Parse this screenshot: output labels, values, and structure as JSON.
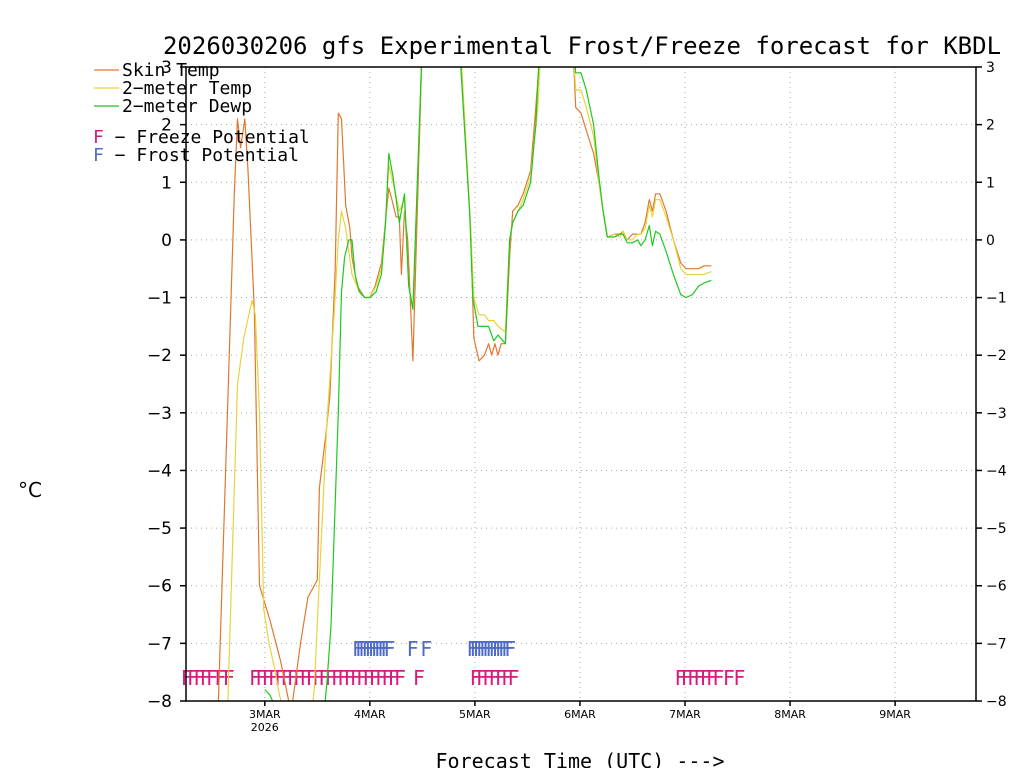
{
  "chart_data": {
    "type": "line",
    "title": "2026030206 gfs Experimental Frost/Freeze forecast for KBDL",
    "xlabel": "Forecast Time (UTC) --->",
    "ylabel": "°C",
    "ylim": [
      -8,
      3
    ],
    "yticks": [
      3,
      2,
      1,
      0,
      -1,
      -2,
      -3,
      -4,
      -5,
      -6,
      -7,
      -8
    ],
    "yticks_right": [
      3,
      2,
      1,
      0,
      -1,
      -2,
      -3,
      -4,
      -5,
      -6,
      -7,
      -8
    ],
    "x_unit": "days since 2026-03-02 00Z",
    "xlim": [
      0.25,
      7.77
    ],
    "xticks": [
      {
        "x": 1,
        "label": "3MAR",
        "sub": "2026"
      },
      {
        "x": 2,
        "label": "4MAR",
        "sub": ""
      },
      {
        "x": 3,
        "label": "5MAR",
        "sub": ""
      },
      {
        "x": 4,
        "label": "6MAR",
        "sub": ""
      },
      {
        "x": 5,
        "label": "7MAR",
        "sub": ""
      },
      {
        "x": 6,
        "label": "8MAR",
        "sub": ""
      },
      {
        "x": 7,
        "label": "9MAR",
        "sub": ""
      }
    ],
    "grid": true,
    "legend_position": "top-left",
    "series": [
      {
        "name": "Skin Temp",
        "color": "#e07830",
        "points": [
          [
            0.55,
            -8.5
          ],
          [
            0.71,
            0.8
          ],
          [
            0.74,
            2.1
          ],
          [
            0.77,
            1.6
          ],
          [
            0.81,
            2.1
          ],
          [
            0.84,
            1.2
          ],
          [
            0.9,
            -1.2
          ],
          [
            0.95,
            -6.0
          ],
          [
            1.05,
            -6.6
          ],
          [
            1.15,
            -7.3
          ],
          [
            1.25,
            -8.2
          ],
          [
            1.34,
            -7.0
          ],
          [
            1.41,
            -6.2
          ],
          [
            1.5,
            -5.9
          ],
          [
            1.52,
            -4.3
          ],
          [
            1.58,
            -3.4
          ],
          [
            1.62,
            -2.7
          ],
          [
            1.67,
            -0.5
          ],
          [
            1.7,
            2.2
          ],
          [
            1.73,
            2.1
          ],
          [
            1.77,
            0.6
          ],
          [
            1.81,
            0.2
          ],
          [
            1.83,
            -0.3
          ],
          [
            1.88,
            -0.8
          ],
          [
            1.95,
            -1.0
          ],
          [
            2.0,
            -1.0
          ],
          [
            2.05,
            -0.8
          ],
          [
            2.11,
            -0.4
          ],
          [
            2.18,
            0.9
          ],
          [
            2.21,
            0.7
          ],
          [
            2.25,
            0.4
          ],
          [
            2.28,
            0.4
          ],
          [
            2.3,
            -0.6
          ],
          [
            2.33,
            0.5
          ],
          [
            2.36,
            0.0
          ],
          [
            2.41,
            -2.1
          ],
          [
            2.5,
            3.5
          ],
          [
            2.85,
            3.5
          ],
          [
            2.96,
            0.2
          ],
          [
            2.99,
            -1.7
          ],
          [
            3.04,
            -2.1
          ],
          [
            3.09,
            -2.0
          ],
          [
            3.13,
            -1.8
          ],
          [
            3.16,
            -2.0
          ],
          [
            3.19,
            -1.8
          ],
          [
            3.22,
            -2.0
          ],
          [
            3.25,
            -1.8
          ],
          [
            3.29,
            -1.8
          ],
          [
            3.33,
            -0.3
          ],
          [
            3.36,
            0.5
          ],
          [
            3.41,
            0.6
          ],
          [
            3.46,
            0.8
          ],
          [
            3.53,
            1.2
          ],
          [
            3.58,
            2.3
          ],
          [
            3.63,
            3.5
          ],
          [
            3.93,
            3.5
          ],
          [
            3.96,
            2.3
          ],
          [
            4.01,
            2.2
          ],
          [
            4.06,
            1.9
          ],
          [
            4.13,
            1.5
          ],
          [
            4.18,
            1.0
          ],
          [
            4.22,
            0.5
          ],
          [
            4.26,
            0.05
          ],
          [
            4.33,
            0.1
          ],
          [
            4.38,
            0.1
          ],
          [
            4.41,
            0.15
          ],
          [
            4.45,
            0.0
          ],
          [
            4.5,
            0.1
          ],
          [
            4.55,
            0.1
          ],
          [
            4.58,
            0.1
          ],
          [
            4.62,
            0.3
          ],
          [
            4.66,
            0.7
          ],
          [
            4.69,
            0.5
          ],
          [
            4.72,
            0.8
          ],
          [
            4.76,
            0.8
          ],
          [
            4.82,
            0.5
          ],
          [
            4.89,
            0.0
          ],
          [
            4.96,
            -0.4
          ],
          [
            5.01,
            -0.5
          ],
          [
            5.07,
            -0.5
          ],
          [
            5.13,
            -0.5
          ],
          [
            5.18,
            -0.45
          ],
          [
            5.25,
            -0.45
          ]
        ]
      },
      {
        "name": "2-meter Temp",
        "color": "#e6d43c",
        "points": [
          [
            0.64,
            -8.5
          ],
          [
            0.74,
            -2.5
          ],
          [
            0.8,
            -1.7
          ],
          [
            0.86,
            -1.2
          ],
          [
            0.88,
            -1.05
          ],
          [
            0.91,
            -1.3
          ],
          [
            0.95,
            -3.0
          ],
          [
            0.99,
            -6.4
          ],
          [
            1.04,
            -7.0
          ],
          [
            1.09,
            -7.4
          ],
          [
            1.14,
            -7.9
          ],
          [
            1.25,
            -8.7
          ],
          [
            1.42,
            -8.7
          ],
          [
            1.47,
            -7.8
          ],
          [
            1.52,
            -5.9
          ],
          [
            1.59,
            -3.2
          ],
          [
            1.63,
            -2.1
          ],
          [
            1.66,
            -1.3
          ],
          [
            1.7,
            0.0
          ],
          [
            1.73,
            0.5
          ],
          [
            1.77,
            0.2
          ],
          [
            1.8,
            -0.2
          ],
          [
            1.83,
            -0.6
          ],
          [
            1.9,
            -0.9
          ],
          [
            1.95,
            -1.0
          ],
          [
            2.0,
            -1.0
          ],
          [
            2.06,
            -0.8
          ],
          [
            2.11,
            -0.5
          ],
          [
            2.15,
            0.3
          ],
          [
            2.18,
            1.3
          ],
          [
            2.22,
            1.0
          ],
          [
            2.28,
            0.5
          ],
          [
            2.33,
            0.7
          ],
          [
            2.37,
            -0.8
          ],
          [
            2.41,
            -1.2
          ],
          [
            2.5,
            3.5
          ],
          [
            2.86,
            3.5
          ],
          [
            2.96,
            0.2
          ],
          [
            2.99,
            -1.0
          ],
          [
            3.04,
            -1.3
          ],
          [
            3.09,
            -1.3
          ],
          [
            3.13,
            -1.4
          ],
          [
            3.18,
            -1.4
          ],
          [
            3.22,
            -1.5
          ],
          [
            3.29,
            -1.6
          ],
          [
            3.33,
            0.0
          ],
          [
            3.36,
            0.3
          ],
          [
            3.41,
            0.5
          ],
          [
            3.46,
            0.7
          ],
          [
            3.53,
            1.1
          ],
          [
            3.6,
            2.3
          ],
          [
            3.63,
            3.5
          ],
          [
            3.93,
            3.5
          ],
          [
            3.96,
            2.6
          ],
          [
            4.01,
            2.6
          ],
          [
            4.06,
            2.3
          ],
          [
            4.13,
            1.8
          ],
          [
            4.18,
            1.0
          ],
          [
            4.22,
            0.5
          ],
          [
            4.26,
            0.05
          ],
          [
            4.33,
            0.1
          ],
          [
            4.38,
            0.05
          ],
          [
            4.41,
            0.15
          ],
          [
            4.45,
            0.0
          ],
          [
            4.5,
            0.0
          ],
          [
            4.55,
            0.1
          ],
          [
            4.58,
            0.1
          ],
          [
            4.62,
            0.2
          ],
          [
            4.66,
            0.6
          ],
          [
            4.69,
            0.4
          ],
          [
            4.72,
            0.7
          ],
          [
            4.76,
            0.7
          ],
          [
            4.82,
            0.4
          ],
          [
            4.89,
            0.0
          ],
          [
            4.96,
            -0.5
          ],
          [
            5.01,
            -0.6
          ],
          [
            5.07,
            -0.6
          ],
          [
            5.13,
            -0.6
          ],
          [
            5.18,
            -0.6
          ],
          [
            5.25,
            -0.55
          ]
        ]
      },
      {
        "name": "2-meter Dewp",
        "color": "#1ec81e",
        "points": [
          [
            1.0,
            -7.8
          ],
          [
            1.05,
            -7.9
          ],
          [
            1.15,
            -8.3
          ],
          [
            1.35,
            -8.6
          ],
          [
            1.55,
            -8.5
          ],
          [
            1.59,
            -7.7
          ],
          [
            1.63,
            -6.7
          ],
          [
            1.7,
            -3.0
          ],
          [
            1.73,
            -0.9
          ],
          [
            1.76,
            -0.3
          ],
          [
            1.8,
            0.0
          ],
          [
            1.83,
            0.0
          ],
          [
            1.86,
            -0.6
          ],
          [
            1.9,
            -0.9
          ],
          [
            1.95,
            -1.0
          ],
          [
            2.0,
            -1.0
          ],
          [
            2.06,
            -0.9
          ],
          [
            2.11,
            -0.6
          ],
          [
            2.15,
            0.3
          ],
          [
            2.18,
            1.5
          ],
          [
            2.22,
            1.1
          ],
          [
            2.28,
            0.3
          ],
          [
            2.33,
            0.8
          ],
          [
            2.37,
            -0.8
          ],
          [
            2.41,
            -1.2
          ],
          [
            2.5,
            3.5
          ],
          [
            2.85,
            3.5
          ],
          [
            2.95,
            0.5
          ],
          [
            2.98,
            -1.0
          ],
          [
            3.03,
            -1.5
          ],
          [
            3.09,
            -1.5
          ],
          [
            3.13,
            -1.5
          ],
          [
            3.18,
            -1.75
          ],
          [
            3.22,
            -1.65
          ],
          [
            3.29,
            -1.8
          ],
          [
            3.33,
            0.0
          ],
          [
            3.36,
            0.3
          ],
          [
            3.41,
            0.5
          ],
          [
            3.46,
            0.6
          ],
          [
            3.53,
            1.0
          ],
          [
            3.58,
            2.0
          ],
          [
            3.62,
            3.5
          ],
          [
            3.93,
            3.5
          ],
          [
            3.96,
            2.9
          ],
          [
            4.01,
            2.9
          ],
          [
            4.06,
            2.6
          ],
          [
            4.13,
            2.0
          ],
          [
            4.18,
            1.1
          ],
          [
            4.22,
            0.5
          ],
          [
            4.26,
            0.05
          ],
          [
            4.33,
            0.05
          ],
          [
            4.38,
            0.1
          ],
          [
            4.41,
            0.1
          ],
          [
            4.45,
            -0.05
          ],
          [
            4.5,
            -0.05
          ],
          [
            4.55,
            0.0
          ],
          [
            4.58,
            -0.1
          ],
          [
            4.62,
            0.0
          ],
          [
            4.66,
            0.25
          ],
          [
            4.69,
            -0.1
          ],
          [
            4.72,
            0.15
          ],
          [
            4.76,
            0.1
          ],
          [
            4.82,
            -0.2
          ],
          [
            4.89,
            -0.6
          ],
          [
            4.96,
            -0.95
          ],
          [
            5.01,
            -1.0
          ],
          [
            5.07,
            -0.95
          ],
          [
            5.13,
            -0.8
          ],
          [
            5.18,
            -0.75
          ],
          [
            5.25,
            -0.7
          ]
        ]
      }
    ],
    "legend": [
      {
        "name": "Skin Temp",
        "color": "#e07830"
      },
      {
        "name": "2-meter Temp",
        "color": "#e6d43c"
      },
      {
        "name": "2-meter Dewp",
        "color": "#1ec81e"
      }
    ],
    "potential_legend": [
      {
        "letter": "F",
        "text": " - Freeze Potential",
        "color": "#d81b7c"
      },
      {
        "letter": "F",
        "text": " - Frost Potential",
        "color": "#4f6ac8"
      }
    ],
    "frost_potential": {
      "y": -7.1,
      "color": "#4f6ac8",
      "times": [
        1.83,
        1.86,
        1.89,
        1.92,
        1.95,
        1.98,
        2.01,
        2.04,
        2.07,
        2.1,
        2.13,
        2.35,
        2.48,
        2.92,
        2.95,
        2.98,
        3.01,
        3.04,
        3.07,
        3.1,
        3.13,
        3.16,
        3.19,
        3.22,
        3.25,
        3.28
      ]
    },
    "freeze_potential": {
      "y": -7.6,
      "color": "#d81b7c",
      "times": [
        0.2,
        0.26,
        0.32,
        0.38,
        0.44,
        0.52,
        0.6,
        0.85,
        0.91,
        0.97,
        1.03,
        1.09,
        1.15,
        1.21,
        1.27,
        1.33,
        1.39,
        1.45,
        1.51,
        1.57,
        1.63,
        1.69,
        1.75,
        1.81,
        1.87,
        1.93,
        1.99,
        2.05,
        2.11,
        2.17,
        2.23,
        2.41,
        2.95,
        3.01,
        3.07,
        3.13,
        3.19,
        3.25,
        3.31,
        4.9,
        4.96,
        5.02,
        5.08,
        5.14,
        5.2,
        5.26,
        5.36,
        5.46
      ]
    },
    "marker_letter": "F"
  }
}
